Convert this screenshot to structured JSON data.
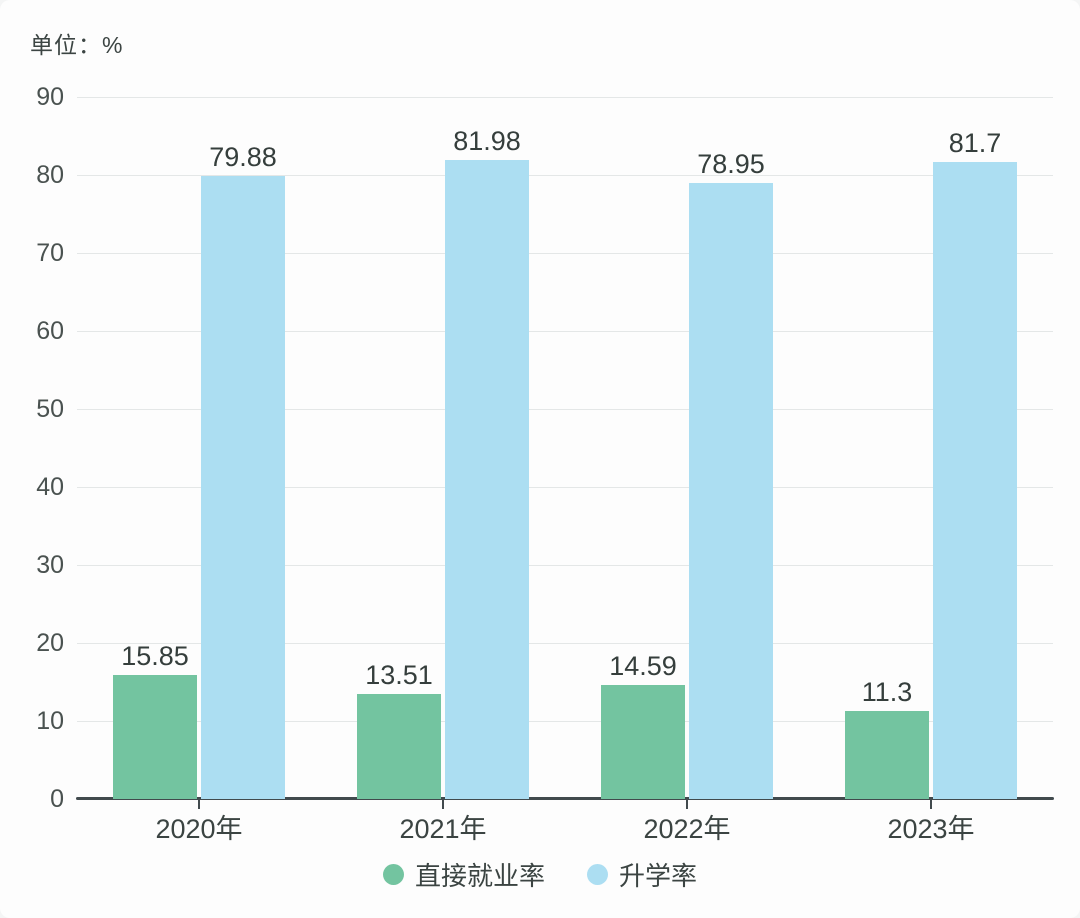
{
  "chart_data": {
    "type": "bar",
    "title": "",
    "unit_label": "单位：%",
    "categories": [
      "2020年",
      "2021年",
      "2022年",
      "2023年"
    ],
    "series": [
      {
        "name": "直接就业率",
        "color": "#73c4a0",
        "values": [
          15.85,
          13.51,
          14.59,
          11.3
        ]
      },
      {
        "name": "升学率",
        "color": "#acdef2",
        "values": [
          79.88,
          81.98,
          78.95,
          81.7
        ]
      }
    ],
    "xlabel": "",
    "ylabel": "单位：%",
    "ylim": [
      0,
      90
    ],
    "yticks": [
      0,
      10,
      20,
      30,
      40,
      50,
      60,
      70,
      80,
      90
    ],
    "grid": true,
    "value_labels": true,
    "legend_position": "bottom",
    "colors": {
      "background": "#fdfdfd",
      "gridline": "#e4e7e7",
      "axis": "#414a4d",
      "text": "#3b4442",
      "tick_text": "#4a5250"
    }
  }
}
